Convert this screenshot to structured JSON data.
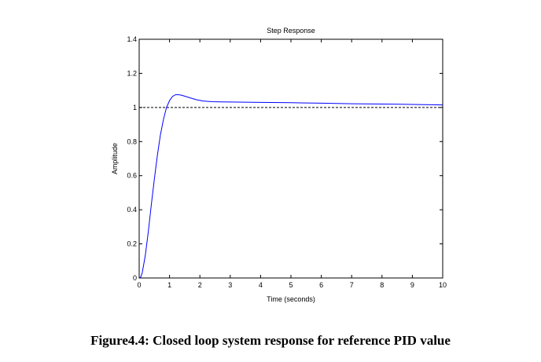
{
  "caption": "Figure4.4: Closed loop system response for reference PID value",
  "chart_data": {
    "type": "line",
    "title": "Step Response",
    "xlabel": "Time (seconds)",
    "ylabel": "Amplitude",
    "xlim": [
      0,
      10
    ],
    "ylim": [
      0,
      1.4
    ],
    "xticks": [
      0,
      1,
      2,
      3,
      4,
      5,
      6,
      7,
      8,
      9,
      10
    ],
    "yticks": [
      0,
      0.2,
      0.4,
      0.6,
      0.8,
      1,
      1.2,
      1.4
    ],
    "grid": false,
    "series": [
      {
        "color": "#0000ff",
        "x": [
          0,
          0.05,
          0.1,
          0.2,
          0.3,
          0.4,
          0.5,
          0.6,
          0.7,
          0.8,
          0.9,
          1.0,
          1.1,
          1.2,
          1.3,
          1.4,
          1.5,
          1.7,
          1.9,
          2.1,
          2.4,
          2.7,
          3.0,
          3.5,
          4.0,
          5.0,
          6.0,
          7.0,
          8.0,
          9.0,
          10.0
        ],
        "y": [
          0,
          0.005,
          0.03,
          0.13,
          0.27,
          0.43,
          0.58,
          0.72,
          0.84,
          0.93,
          1.0,
          1.04,
          1.065,
          1.075,
          1.075,
          1.072,
          1.066,
          1.055,
          1.045,
          1.038,
          1.034,
          1.033,
          1.032,
          1.031,
          1.03,
          1.028,
          1.025,
          1.022,
          1.02,
          1.018,
          1.015
        ]
      },
      {
        "color": "#000000",
        "style": "dashed",
        "x": [
          0,
          10
        ],
        "y": [
          1,
          1
        ]
      }
    ]
  }
}
